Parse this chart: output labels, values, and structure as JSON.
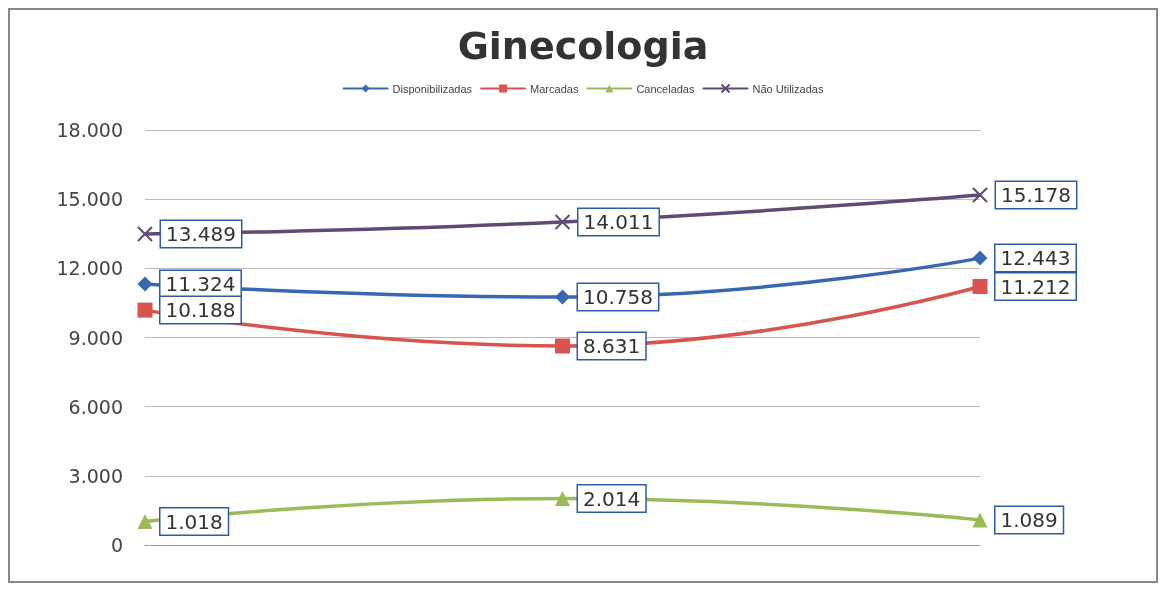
{
  "chart_data": {
    "type": "line",
    "title": "Ginecologia",
    "categories": [
      null,
      null,
      null
    ],
    "series": [
      {
        "name": "Disponibilizadas",
        "color": "#3a67b1",
        "marker": "diamond",
        "values": [
          11324,
          10758,
          12443
        ],
        "value_labels": [
          "11.324",
          "10.758",
          "12.443"
        ]
      },
      {
        "name": "Marcadas",
        "color": "#d9534f",
        "marker": "square",
        "values": [
          10188,
          8631,
          11212
        ],
        "value_labels": [
          "10.188",
          "8.631",
          "11.212"
        ]
      },
      {
        "name": "Canceladas",
        "color": "#9bbb59",
        "marker": "triangle",
        "values": [
          1018,
          2014,
          1089
        ],
        "value_labels": [
          "1.018",
          "2.014",
          "1.089"
        ]
      },
      {
        "name": "Não Utilizadas",
        "color": "#5f4b74",
        "marker": "cross",
        "values": [
          13489,
          14011,
          15178
        ],
        "value_labels": [
          "13.489",
          "14.011",
          "15.178"
        ]
      }
    ],
    "ylim": [
      0,
      18000
    ],
    "yticks": [
      0,
      {
        "value": 3000,
        "label": "3.000"
      },
      {
        "value": 6000,
        "label": "6.000"
      },
      {
        "value": 9000,
        "label": "9.000"
      },
      {
        "value": 12000,
        "label": "12.000"
      },
      {
        "value": 15000,
        "label": "15.000"
      },
      {
        "value": 18000,
        "label": "18.000"
      }
    ],
    "grid": "y",
    "legend": "top",
    "tick_labels": "y",
    "line_style": "solid"
  }
}
